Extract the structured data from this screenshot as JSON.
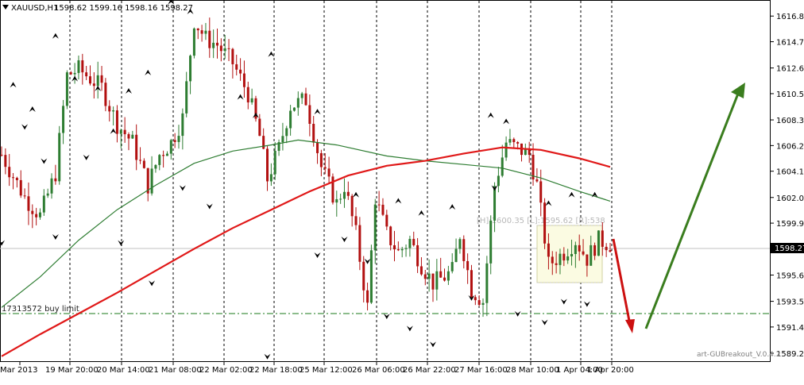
{
  "header": {
    "symbol": "XAUUSD,H1",
    "ohlc": "1598.62 1599.16 1598.16 1598.27"
  },
  "price_labels": [
    "1616.85",
    "1614.75",
    "1612.60",
    "1610.50",
    "1608.35",
    "1606.25",
    "1604.15",
    "1602.00",
    "1599.90",
    "1597.75",
    "1595.65",
    "1593.50",
    "1591.40",
    "1589.25"
  ],
  "current_price": "1598.27",
  "time_labels": [
    "Mar 2013",
    "19 Mar 20:00",
    "20 Mar 14:00",
    "21 Mar 08:00",
    "22 Mar 02:00",
    "22 Mar 18:00",
    "25 Mar 12:00",
    "26 Mar 06:00",
    "26 Mar 22:00",
    "27 Mar 16:00",
    "28 Mar 10:00",
    "1 Apr 04:00",
    "1 Apr 20:00"
  ],
  "order_label": "17313572 buy limit",
  "box_label": "[H]:1600.35 [L]:1595.62 [R]:538",
  "watermark": "art-GUBreakout_V.0.4.2",
  "colors": {
    "bull": "#2e7d32",
    "bear": "#b21010",
    "ma_fast": "#2e7d32",
    "ma_slow": "#e01818",
    "order_line": "#1a7a1a",
    "arrow_up": "#3a7d1e",
    "arrow_down": "#cc1010"
  },
  "chart_data": {
    "type": "candlestick",
    "symbol": "XAUUSD",
    "timeframe": "H1",
    "last_price": 1598.27,
    "y_range": [
      1588.6,
      1618.1
    ],
    "trend_hint": [
      "down",
      "up"
    ],
    "order": {
      "type": "buy limit",
      "price": 1593.0
    },
    "close_path": [
      [
        0,
        1605.5
      ],
      [
        6,
        1602.0
      ],
      [
        10,
        1600.5
      ],
      [
        14,
        1604.0
      ],
      [
        17,
        1612.0
      ],
      [
        20,
        1612.5
      ],
      [
        26,
        1611.0
      ],
      [
        30,
        1608.0
      ],
      [
        34,
        1606.5
      ],
      [
        38,
        1603.0
      ],
      [
        41,
        1605.5
      ],
      [
        44,
        1606.5
      ],
      [
        47,
        1608.5
      ],
      [
        50,
        1616.5
      ],
      [
        53,
        1615.0
      ],
      [
        56,
        1614.5
      ],
      [
        60,
        1613.0
      ],
      [
        64,
        1610.5
      ],
      [
        67,
        1607.0
      ],
      [
        69,
        1603.5
      ],
      [
        72,
        1606.0
      ],
      [
        75,
        1609.5
      ],
      [
        79,
        1610.0
      ],
      [
        83,
        1604.5
      ],
      [
        87,
        1601.5
      ],
      [
        89,
        1603.0
      ],
      [
        92,
        1599.0
      ],
      [
        95,
        1593.0
      ],
      [
        97,
        1602.0
      ],
      [
        100,
        1599.0
      ],
      [
        103,
        1597.5
      ],
      [
        106,
        1598.5
      ],
      [
        109,
        1596.5
      ],
      [
        112,
        1595.0
      ],
      [
        115,
        1595.5
      ],
      [
        117,
        1596.0
      ],
      [
        119,
        1599.0
      ],
      [
        122,
        1594.5
      ],
      [
        125,
        1593.5
      ],
      [
        128,
        1603.0
      ],
      [
        131,
        1606.5
      ],
      [
        134,
        1606.0
      ],
      [
        137,
        1605.5
      ],
      [
        139,
        1603.0
      ],
      [
        142,
        1596.5
      ],
      [
        146,
        1597.5
      ],
      [
        149,
        1598.5
      ],
      [
        152,
        1597.0
      ],
      [
        155,
        1598.5
      ],
      [
        158,
        1598.2
      ]
    ],
    "ma_fast_path": [
      [
        0,
        1593.0
      ],
      [
        10,
        1595.5
      ],
      [
        20,
        1598.5
      ],
      [
        30,
        1601.0
      ],
      [
        40,
        1603.0
      ],
      [
        50,
        1604.8
      ],
      [
        60,
        1605.8
      ],
      [
        70,
        1606.3
      ],
      [
        77,
        1606.7
      ],
      [
        87,
        1606.3
      ],
      [
        100,
        1605.4
      ],
      [
        110,
        1605.0
      ],
      [
        120,
        1604.7
      ],
      [
        130,
        1604.4
      ],
      [
        140,
        1603.6
      ],
      [
        150,
        1602.5
      ],
      [
        158,
        1601.7
      ]
    ],
    "ma_slow_path": [
      [
        0,
        1589.0
      ],
      [
        10,
        1590.8
      ],
      [
        20,
        1592.5
      ],
      [
        30,
        1594.2
      ],
      [
        40,
        1596.0
      ],
      [
        50,
        1597.8
      ],
      [
        60,
        1599.5
      ],
      [
        70,
        1601.0
      ],
      [
        80,
        1602.5
      ],
      [
        90,
        1603.8
      ],
      [
        100,
        1604.6
      ],
      [
        110,
        1605.0
      ],
      [
        120,
        1605.6
      ],
      [
        130,
        1606.1
      ],
      [
        140,
        1605.9
      ],
      [
        150,
        1605.2
      ],
      [
        158,
        1604.5
      ]
    ],
    "fractals_up": [
      [
        3,
        1611.0
      ],
      [
        8,
        1609.0
      ],
      [
        14,
        1615.0
      ],
      [
        19,
        1611.5
      ],
      [
        25,
        1610.7
      ],
      [
        29,
        1607.2
      ],
      [
        33,
        1610.5
      ],
      [
        38,
        1612.0
      ],
      [
        44,
        1617.8
      ],
      [
        49,
        1617.0
      ],
      [
        62,
        1610.0
      ],
      [
        66,
        1608.5
      ],
      [
        70,
        1613.5
      ],
      [
        82,
        1608.8
      ],
      [
        92,
        1602.0
      ],
      [
        103,
        1601.5
      ],
      [
        109,
        1600.5
      ],
      [
        117,
        1601.0
      ],
      [
        127,
        1608.5
      ],
      [
        131,
        1608.0
      ],
      [
        142,
        1601.3
      ],
      [
        148,
        1602.0
      ],
      [
        154,
        1602.0
      ]
    ],
    "fractals_down": [
      [
        0,
        1598.5
      ],
      [
        6,
        1608.0
      ],
      [
        11,
        1605.2
      ],
      [
        14,
        1599.0
      ],
      [
        22,
        1605.5
      ],
      [
        31,
        1598.5
      ],
      [
        39,
        1595.2
      ],
      [
        47,
        1603.0
      ],
      [
        54,
        1601.5
      ],
      [
        69,
        1589.2
      ],
      [
        82,
        1597.5
      ],
      [
        89,
        1598.8
      ],
      [
        95,
        1597.0
      ],
      [
        100,
        1592.5
      ],
      [
        106,
        1591.5
      ],
      [
        112,
        1590.2
      ],
      [
        122,
        1594.0
      ],
      [
        128,
        1603.0
      ],
      [
        134,
        1592.7
      ],
      [
        141,
        1592.0
      ],
      [
        146,
        1593.7
      ],
      [
        152,
        1593.5
      ]
    ]
  }
}
